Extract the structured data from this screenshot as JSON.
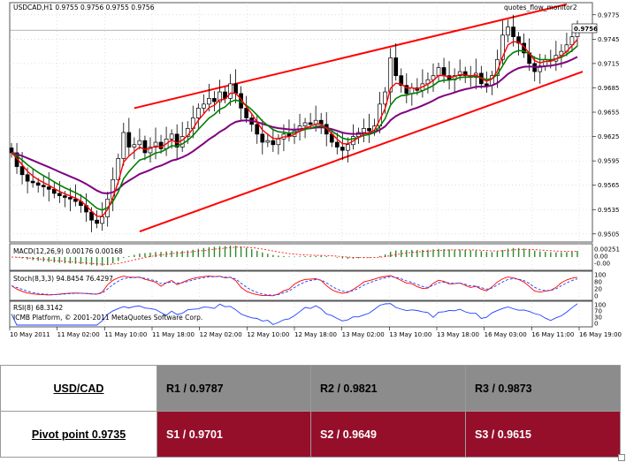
{
  "chart_data": [
    {
      "type": "candlestick",
      "title": "USDCAD,H1  0.9755 0.9756 0.9755 0.9756",
      "ylim": [
        0.9495,
        0.979
      ],
      "y_ticks": [
        "0.9775",
        "0.9745",
        "0.9715",
        "0.9685",
        "0.9655",
        "0.9625",
        "0.9595",
        "0.9565",
        "0.9535",
        "0.9505"
      ],
      "current_price": "0.9756",
      "annotation": "quotes_flow_monitor2",
      "x_ticks": [
        "10 May 2011",
        "11 May 02:00",
        "11 May 10:00",
        "11 May 18:00",
        "12 May 02:00",
        "12 May 10:00",
        "12 May 18:00",
        "13 May 02:00",
        "13 May 10:00",
        "13 May 18:00",
        "16 May 03:00",
        "16 May 11:00",
        "16 May 19:00"
      ],
      "close": [
        0.9605,
        0.9588,
        0.9578,
        0.957,
        0.9568,
        0.9565,
        0.9563,
        0.956,
        0.9555,
        0.9552,
        0.955,
        0.9548,
        0.9545,
        0.954,
        0.9532,
        0.9522,
        0.9518,
        0.9526,
        0.9548,
        0.9572,
        0.9598,
        0.963,
        0.9612,
        0.9615,
        0.962,
        0.9605,
        0.9612,
        0.9618,
        0.961,
        0.9622,
        0.9628,
        0.9612,
        0.9625,
        0.9635,
        0.9648,
        0.966,
        0.9665,
        0.9672,
        0.9668,
        0.968,
        0.9672,
        0.969,
        0.9678,
        0.966,
        0.9648,
        0.964,
        0.9628,
        0.9618,
        0.962,
        0.9615,
        0.9622,
        0.9628,
        0.9625,
        0.9632,
        0.9638,
        0.9642,
        0.964,
        0.9645,
        0.964,
        0.9628,
        0.9618,
        0.9612,
        0.9608,
        0.9615,
        0.9625,
        0.963,
        0.9635,
        0.9632,
        0.9638,
        0.9665,
        0.968,
        0.9722,
        0.97,
        0.9688,
        0.9678,
        0.9685,
        0.9682,
        0.969,
        0.9695,
        0.97,
        0.971,
        0.97,
        0.9695,
        0.97,
        0.9705,
        0.97,
        0.9698,
        0.9703,
        0.969,
        0.9688,
        0.97,
        0.972,
        0.975,
        0.976,
        0.9748,
        0.974,
        0.9728,
        0.9715,
        0.9705,
        0.9712,
        0.972,
        0.9718,
        0.9725,
        0.973,
        0.9738,
        0.9748,
        0.9756
      ],
      "trend_lines": [
        {
          "p1": [
            23,
            0.966
          ],
          "p2": [
            104,
            0.9788
          ]
        },
        {
          "p1": [
            24,
            0.9508
          ],
          "p2": [
            107,
            0.9705
          ]
        }
      ]
    },
    {
      "type": "line",
      "label": "MACD(12,26,9) 0.00176 0.00168",
      "y_ticks": [
        "0.00251",
        "0.00",
        "-0.00"
      ]
    },
    {
      "type": "line",
      "label": "Stoch(8,3,3) 94.8454 76.4297",
      "y_ticks": [
        "100",
        "80",
        "20",
        "0"
      ]
    },
    {
      "type": "line",
      "label": "RSI(8) 68.3142",
      "y_ticks": [
        "100",
        "70",
        "30",
        "0"
      ],
      "footer": "ICMB Platform, © 2001-2011 MetaQuotes Software Corp."
    }
  ],
  "pivot_table": {
    "pair": "USD/CAD",
    "pivot": "Pivot point 0.9735",
    "resistance": [
      "R1 / 0.9787",
      "R2 / 0.9821",
      "R3 / 0.9873"
    ],
    "support": [
      "S1 / 0.9701",
      "S2 / 0.9649",
      "S3 / 0.9615"
    ],
    "colors": {
      "resistance_bg": "#8c8c8c",
      "support_bg": "#950f2b",
      "support_text": "#ffffff"
    }
  }
}
